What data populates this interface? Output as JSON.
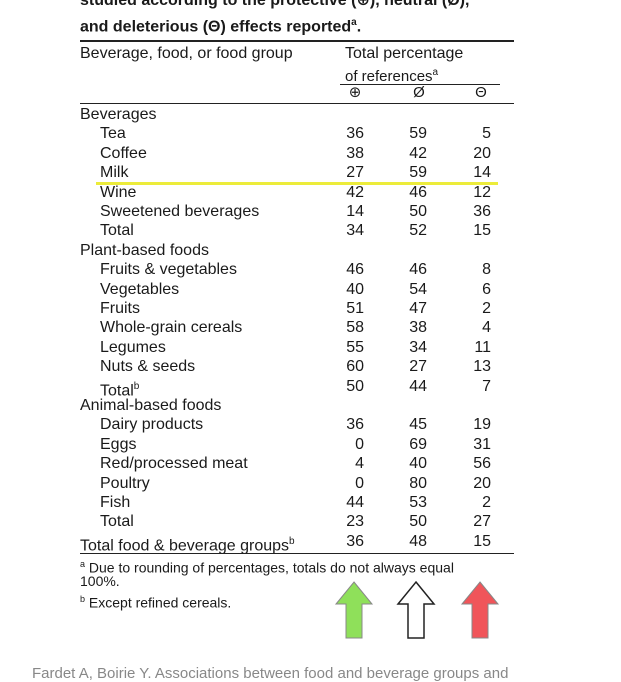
{
  "caption": {
    "line1": "studied according to the protective (⊕), neutral (Ø),",
    "line2": "and deleterious (Θ) effects reported",
    "line2_sup": "a",
    "line2_end": "."
  },
  "header": {
    "col_label": "Beverage, food, or food group",
    "group_line1": "Total percentage",
    "group_line2": "of references",
    "group_sup": "a",
    "sym_protective": "⊕",
    "sym_neutral": "Ø",
    "sym_deleterious": "Θ"
  },
  "rows": [
    {
      "label": "Beverages",
      "indent": 0,
      "vals": [
        "",
        "",
        ""
      ]
    },
    {
      "label": "Tea",
      "indent": 1,
      "vals": [
        "36",
        "59",
        "5"
      ]
    },
    {
      "label": "Coffee",
      "indent": 1,
      "vals": [
        "38",
        "42",
        "20"
      ]
    },
    {
      "label": "Milk",
      "indent": 1,
      "vals": [
        "27",
        "59",
        "14"
      ]
    },
    {
      "label": "Wine",
      "indent": 1,
      "vals": [
        "42",
        "46",
        "12"
      ]
    },
    {
      "label": "Sweetened beverages",
      "indent": 1,
      "vals": [
        "14",
        "50",
        "36"
      ]
    },
    {
      "label": "Total",
      "indent": 1,
      "vals": [
        "34",
        "52",
        "15"
      ]
    },
    {
      "label": "Plant-based foods",
      "indent": 0,
      "vals": [
        "",
        "",
        ""
      ]
    },
    {
      "label": "Fruits & vegetables",
      "indent": 1,
      "vals": [
        "46",
        "46",
        "8"
      ]
    },
    {
      "label": "Vegetables",
      "indent": 1,
      "vals": [
        "40",
        "54",
        "6"
      ]
    },
    {
      "label": "Fruits",
      "indent": 1,
      "vals": [
        "51",
        "47",
        "2"
      ]
    },
    {
      "label": "Whole-grain cereals",
      "indent": 1,
      "vals": [
        "58",
        "38",
        "4"
      ]
    },
    {
      "label": "Legumes",
      "indent": 1,
      "vals": [
        "55",
        "34",
        "11"
      ]
    },
    {
      "label": "Nuts & seeds",
      "indent": 1,
      "vals": [
        "60",
        "27",
        "13"
      ]
    },
    {
      "label": "Total",
      "indent": 1,
      "sup": "b",
      "vals": [
        "50",
        "44",
        "7"
      ]
    },
    {
      "label": "Animal-based foods",
      "indent": 0,
      "vals": [
        "",
        "",
        ""
      ]
    },
    {
      "label": "Dairy products",
      "indent": 1,
      "vals": [
        "36",
        "45",
        "19"
      ]
    },
    {
      "label": "Eggs",
      "indent": 1,
      "vals": [
        "0",
        "69",
        "31"
      ]
    },
    {
      "label": "Red/processed meat",
      "indent": 1,
      "vals": [
        "4",
        "40",
        "56"
      ]
    },
    {
      "label": "Poultry",
      "indent": 1,
      "vals": [
        "0",
        "80",
        "20"
      ]
    },
    {
      "label": "Fish",
      "indent": 1,
      "vals": [
        "44",
        "53",
        "2"
      ]
    },
    {
      "label": "Total",
      "indent": 1,
      "vals": [
        "23",
        "50",
        "27"
      ]
    },
    {
      "label": "Total food & beverage groups",
      "indent": 0,
      "sup": "b",
      "vals": [
        "36",
        "48",
        "15"
      ]
    }
  ],
  "footnotes": {
    "a_sup": "a",
    "a_line1": " Due to rounding of percentages, totals do not always equal",
    "a_line2": "100%.",
    "b_sup": "b",
    "b_text": " Except refined cereals."
  },
  "arrows": [
    {
      "name": "protective",
      "color": "#8fe05a"
    },
    {
      "name": "neutral",
      "color": "#ffffff"
    },
    {
      "name": "deleterious",
      "color": "#f0555a"
    }
  ],
  "highlight_color": "#ecec3a",
  "bottom_text": "Fardet A, Boirie Y. Associations between food and beverage groups and"
}
